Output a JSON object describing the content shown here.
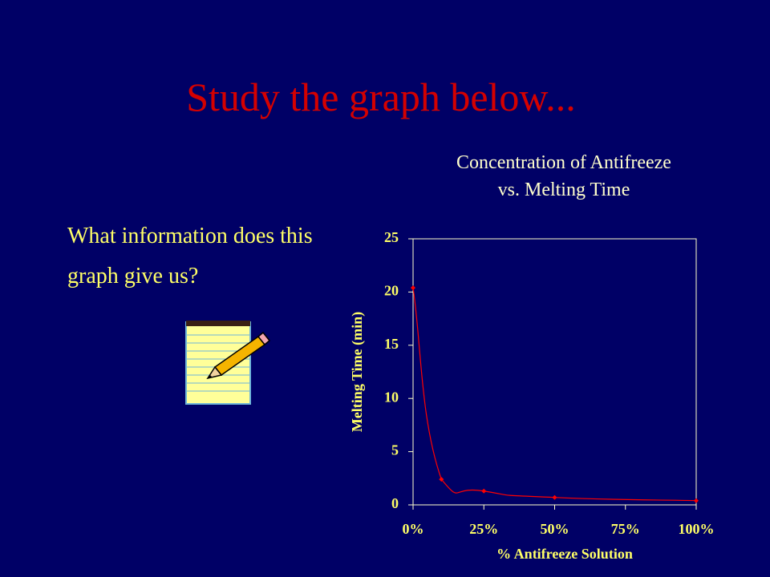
{
  "slide": {
    "title": "Study the graph below...",
    "question": "What information does this graph give us?"
  },
  "chart_data": {
    "type": "line",
    "title": "Concentration of Antifreeze vs. Melting Time",
    "x_label": "% Antifreeze Solution",
    "y_label": "Melting Time (min)",
    "x": [
      0,
      10,
      25,
      50,
      100
    ],
    "series": [
      {
        "color": "#ff0000",
        "values": [
          20.4,
          2.4,
          1.3,
          0.7,
          0.4
        ]
      }
    ],
    "xlim": [
      0,
      100
    ],
    "xticks": [
      {
        "value": 0,
        "label": "0%"
      },
      {
        "value": 25,
        "label": "25%"
      },
      {
        "value": 50,
        "label": "50%"
      },
      {
        "value": 75,
        "label": "75%"
      },
      {
        "value": 100,
        "label": "100%"
      }
    ],
    "ylim": [
      0,
      25
    ],
    "yticks": [
      0,
      5,
      10,
      15,
      20,
      25
    ],
    "grid": false
  }
}
